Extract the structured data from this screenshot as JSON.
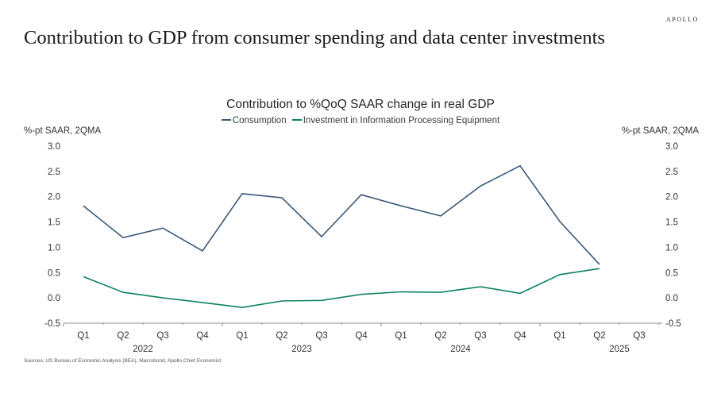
{
  "brand": "APOLLO",
  "page_title": "Contribution to GDP from consumer spending and data center investments",
  "source": "Sources: US Bureau of Economic Analysis (BEA), Macrobond, Apollo Chief Economist",
  "colors": {
    "consumption": "#3a5878",
    "investment": "#0f8067",
    "axis": "#8c8c8c"
  },
  "chart_data": {
    "type": "line",
    "title": "Contribution to %QoQ SAAR change in real GDP",
    "ylabel_left": "%-pt SAAR, 2QMA",
    "ylabel_right": "%-pt SAAR, 2QMA",
    "xlabel": "",
    "ylim": [
      -0.5,
      3.0
    ],
    "yticks": [
      "3.0",
      "2.5",
      "2.0",
      "1.5",
      "1.0",
      "0.5",
      "0.0",
      "-0.5"
    ],
    "ytick_values": [
      3.0,
      2.5,
      2.0,
      1.5,
      1.0,
      0.5,
      0.0,
      -0.5
    ],
    "grid": false,
    "legend_position": "top-center",
    "categories": [
      "Q1",
      "Q2",
      "Q3",
      "Q4",
      "Q1",
      "Q2",
      "Q3",
      "Q4",
      "Q1",
      "Q2",
      "Q3",
      "Q4",
      "Q1",
      "Q2",
      "Q3"
    ],
    "years": [
      {
        "label": "2022",
        "start": 0,
        "end": 3
      },
      {
        "label": "2023",
        "start": 4,
        "end": 7
      },
      {
        "label": "2024",
        "start": 8,
        "end": 11
      },
      {
        "label": "2025",
        "start": 12,
        "end": 14
      }
    ],
    "series": [
      {
        "name": "Consumption",
        "color_key": "consumption",
        "values": [
          1.82,
          1.19,
          1.38,
          0.93,
          2.06,
          1.98,
          1.21,
          2.04,
          1.82,
          1.62,
          2.21,
          2.61,
          1.51,
          0.66,
          null
        ]
      },
      {
        "name": "Investment in Information Processing Equipment",
        "color_key": "investment",
        "values": [
          0.42,
          0.11,
          0.0,
          -0.09,
          -0.19,
          -0.06,
          -0.05,
          0.07,
          0.12,
          0.11,
          0.22,
          0.09,
          0.46,
          0.58,
          null
        ]
      }
    ]
  }
}
